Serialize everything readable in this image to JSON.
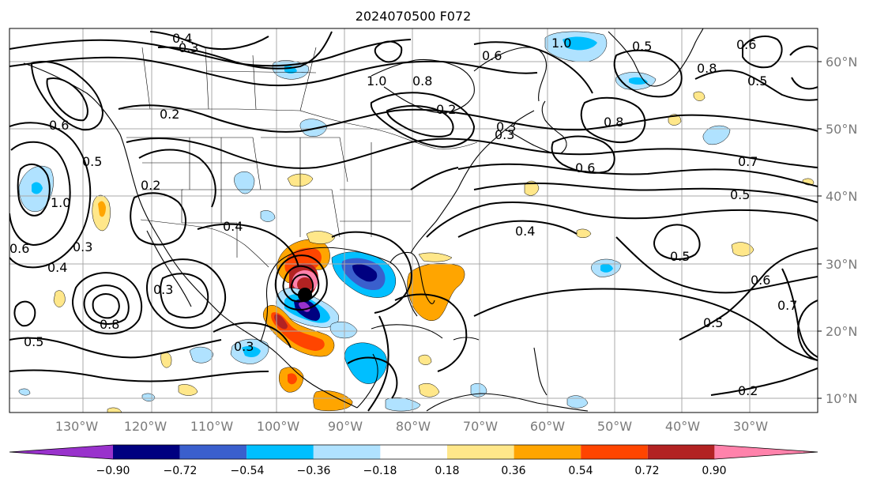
{
  "title": "2024070500 F072",
  "latitude_labels": [
    "60°N",
    "50°N",
    "40°N",
    "30°N",
    "20°N",
    "10°N"
  ],
  "longitude_labels": [
    "130°W",
    "120°W",
    "110°W",
    "100°W",
    "90°W",
    "80°W",
    "70°W",
    "60°W",
    "50°W",
    "40°W",
    "30°W"
  ],
  "colorbar": {
    "ticks": [
      "−0.90",
      "−0.72",
      "−0.54",
      "−0.36",
      "−0.18",
      "0.18",
      "0.36",
      "0.54",
      "0.72",
      "0.90"
    ],
    "colors": [
      "#9932cc",
      "#000080",
      "#3a5fcd",
      "#00bfff",
      "#b0e2ff",
      "#ffffff",
      "#ffe78a",
      "#ffa500",
      "#ff4500",
      "#b22222",
      "#ff82ab"
    ]
  },
  "contour_labels": [
    "0.4",
    "0.3",
    "1.0",
    "0.8",
    "0.6",
    "0.5",
    "0.2",
    "1.0",
    "0.8",
    "0.6",
    "0.5",
    "0.3",
    "0.2",
    "0.8",
    "0.6",
    "0.7",
    "0.5",
    "0.4",
    "0.5",
    "0.6",
    "0.5",
    "0.7",
    "0.2",
    "0.4",
    "0.3",
    "0.8",
    "0.6",
    "0.5",
    "1.0",
    "0.3",
    "0.4",
    "0.5",
    "0.2",
    "0.3",
    "0.3",
    "0.6"
  ],
  "cyclone_marker": "filled-circle-black"
}
